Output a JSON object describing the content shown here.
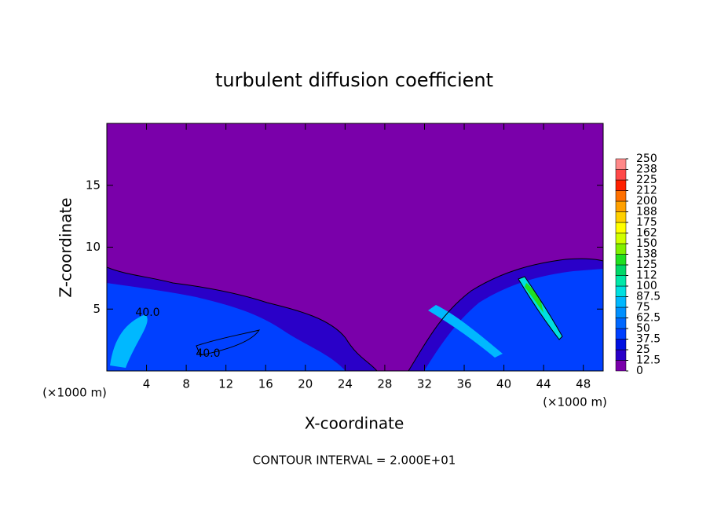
{
  "chart_data": {
    "type": "contour",
    "title": "turbulent diffusion coefficient",
    "x_label": "X-coordinate",
    "y_label": "Z-coordinate",
    "x_unit_left": "(×1000 m)",
    "x_unit_right": "(×1000 m)",
    "footnote": "CONTOUR INTERVAL = 2.000E+01",
    "annotations": [
      "40.0",
      "40.0"
    ],
    "xlim": [
      0,
      50
    ],
    "xticks": [
      4,
      8,
      12,
      16,
      20,
      24,
      28,
      32,
      36,
      40,
      44,
      48
    ],
    "ylim": [
      0,
      20
    ],
    "yticks": [
      5,
      10,
      15
    ],
    "colorbar": {
      "lim": [
        0,
        250
      ],
      "ticks": [
        0,
        12.5,
        25,
        37.5,
        50,
        62.5,
        75,
        87.5,
        100,
        {
          "value": 112.5,
          "label": "112"
        },
        125,
        {
          "value": 137.5,
          "label": "138"
        },
        150,
        {
          "value": 162.5,
          "label": "162"
        },
        175,
        {
          "value": 187.5,
          "label": "188"
        },
        200,
        {
          "value": 212.5,
          "label": "212"
        },
        225,
        {
          "value": 237.5,
          "label": "238"
        },
        250
      ],
      "colors": [
        "#7a00aa",
        "#2a00c8",
        "#0010e0",
        "#0040ff",
        "#0068ff",
        "#0090ff",
        "#00b8ff",
        "#00e0e0",
        "#00e8a8",
        "#00d868",
        "#20e020",
        "#80f000",
        "#d0ff00",
        "#ffff00",
        "#ffd000",
        "#ffa000",
        "#ff7000",
        "#ff2000",
        "#ff4848",
        "#ff8888"
      ]
    }
  }
}
